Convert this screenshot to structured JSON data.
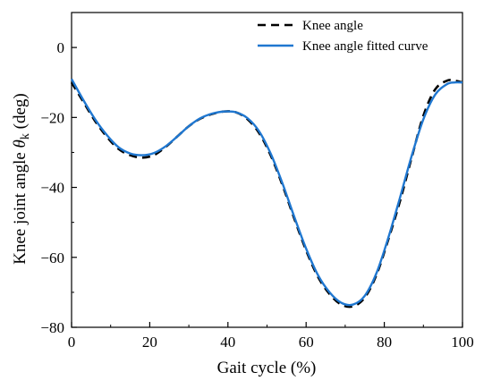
{
  "chart_data": {
    "type": "line",
    "xlabel": "Gait cycle (%)",
    "ylabel_main": "Knee joint angle ",
    "ylabel_symbol": "θ",
    "ylabel_sub": "k",
    "ylabel_unit": " (deg)",
    "xlim": [
      0,
      100
    ],
    "ylim": [
      -80,
      10
    ],
    "xticks": [
      0,
      20,
      40,
      60,
      80,
      100
    ],
    "yticks": [
      -80,
      -60,
      -40,
      -20,
      0
    ],
    "xtick_labels": [
      "0",
      "20",
      "40",
      "60",
      "80",
      "100"
    ],
    "ytick_labels": [
      "−80",
      "−60",
      "−40",
      "−20",
      "0"
    ],
    "legend_position": "top-right",
    "series": [
      {
        "name": "Knee angle",
        "style": "dashed",
        "color": "#000000",
        "x": [
          0,
          3,
          6,
          9,
          12,
          15,
          18,
          21,
          24,
          27,
          30,
          33,
          36,
          39,
          42,
          45,
          48,
          51,
          54,
          57,
          60,
          63,
          66,
          69,
          72,
          75,
          78,
          81,
          84,
          87,
          90,
          93,
          96,
          98,
          100
        ],
        "y": [
          -10,
          -15.5,
          -21,
          -25.5,
          -29,
          -30.8,
          -31.5,
          -30.8,
          -28.5,
          -25.5,
          -22.5,
          -20.3,
          -19,
          -18.3,
          -18.5,
          -20.5,
          -24.5,
          -31,
          -39.5,
          -49,
          -58,
          -65.5,
          -70.5,
          -73.5,
          -74,
          -71.5,
          -65,
          -55,
          -44,
          -31.5,
          -19.5,
          -12,
          -9.5,
          -9.5,
          -10
        ]
      },
      {
        "name": "Knee angle fitted curve",
        "style": "solid",
        "color": "#1f77d0",
        "x": [
          0,
          3,
          6,
          9,
          12,
          15,
          18,
          21,
          24,
          27,
          30,
          33,
          36,
          39,
          42,
          45,
          48,
          51,
          54,
          57,
          60,
          63,
          66,
          69,
          72,
          75,
          78,
          81,
          84,
          87,
          90,
          93,
          96,
          98,
          100
        ],
        "y": [
          -9,
          -15,
          -20.5,
          -25,
          -28.5,
          -30.3,
          -30.8,
          -30.2,
          -28.3,
          -25.5,
          -22.5,
          -20.2,
          -18.9,
          -18.3,
          -18.5,
          -20.2,
          -24,
          -30.5,
          -39,
          -48.5,
          -57.5,
          -65,
          -70,
          -73,
          -73.5,
          -71,
          -64.5,
          -54.5,
          -43,
          -31,
          -20.5,
          -13.5,
          -10.5,
          -10,
          -10
        ]
      }
    ]
  }
}
